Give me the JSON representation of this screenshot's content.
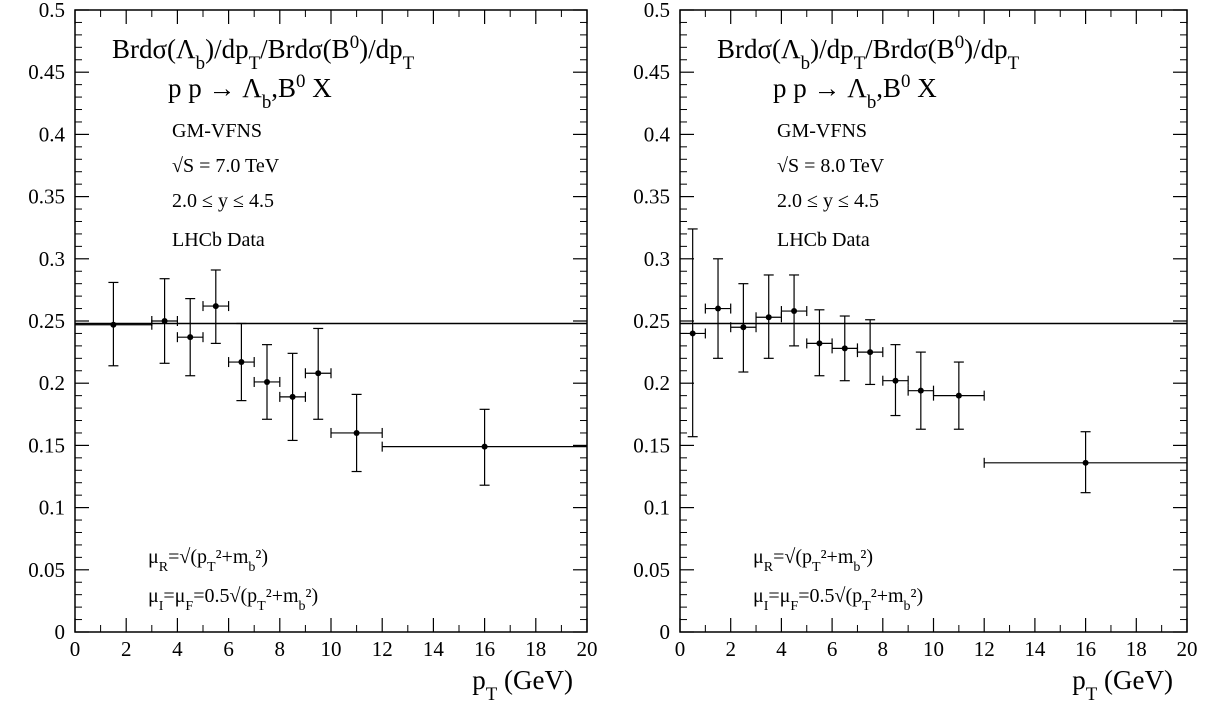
{
  "chart_data": [
    {
      "type": "scatter",
      "title_html": "Brdσ(Λ<tspan baseline-shift=\"sub\" font-size=\"70%\">b</tspan>)/dp<tspan baseline-shift=\"sub\" font-size=\"70%\">T</tspan>/Brdσ(B<tspan baseline-shift=\"super\" font-size=\"70%\">0</tspan>)/dp<tspan baseline-shift=\"sub\" font-size=\"70%\">T</tspan>",
      "process_html": "p p → Λ<tspan baseline-shift=\"sub\" font-size=\"70%\">b</tspan>,B<tspan baseline-shift=\"super\" font-size=\"70%\">0</tspan> X",
      "scheme": "GM-VFNS",
      "energy": "√S = 7.0 TeV",
      "rapidity": "2.0 ≤  y ≤ 4.5",
      "data_label": "LHCb Data",
      "mu_r_html": "μ<tspan baseline-shift=\"sub\" font-size=\"70%\">R</tspan>=√(p<tspan baseline-shift=\"sub\" font-size=\"70%\">T</tspan>²+m<tspan baseline-shift=\"sub\" font-size=\"70%\">b</tspan>²)",
      "mu_i_html": "μ<tspan baseline-shift=\"sub\" font-size=\"70%\">I</tspan>=μ<tspan baseline-shift=\"sub\" font-size=\"70%\">F</tspan>=0.5√(p<tspan baseline-shift=\"sub\" font-size=\"70%\">T</tspan>²+m<tspan baseline-shift=\"sub\" font-size=\"70%\">b</tspan>²)",
      "xlabel_html": "p<tspan baseline-shift=\"sub\" font-size=\"70%\">T</tspan> (GeV)",
      "xlim": [
        0,
        20
      ],
      "ylim": [
        0,
        0.5
      ],
      "xticks": [
        "0",
        "2",
        "4",
        "6",
        "8",
        "10",
        "12",
        "14",
        "16",
        "18",
        "20"
      ],
      "yticks": [
        "0",
        "0.05",
        "0.1",
        "0.15",
        "0.2",
        "0.25",
        "0.3",
        "0.35",
        "0.4",
        "0.45",
        "0.5"
      ],
      "theory_line": 0.248,
      "points": [
        {
          "x": 1.5,
          "y": 0.247,
          "xlo": 0,
          "xhi": 3,
          "ylo": 0.214,
          "yhi": 0.281
        },
        {
          "x": 3.5,
          "y": 0.25,
          "xlo": 3,
          "xhi": 4,
          "ylo": 0.216,
          "yhi": 0.284
        },
        {
          "x": 4.5,
          "y": 0.237,
          "xlo": 4,
          "xhi": 5,
          "ylo": 0.206,
          "yhi": 0.268
        },
        {
          "x": 5.5,
          "y": 0.262,
          "xlo": 5,
          "xhi": 6,
          "ylo": 0.232,
          "yhi": 0.291
        },
        {
          "x": 6.5,
          "y": 0.217,
          "xlo": 6,
          "xhi": 7,
          "ylo": 0.186,
          "yhi": 0.248
        },
        {
          "x": 7.5,
          "y": 0.201,
          "xlo": 7,
          "xhi": 8,
          "ylo": 0.171,
          "yhi": 0.231
        },
        {
          "x": 8.5,
          "y": 0.189,
          "xlo": 8,
          "xhi": 9,
          "ylo": 0.154,
          "yhi": 0.224
        },
        {
          "x": 9.5,
          "y": 0.208,
          "xlo": 9,
          "xhi": 10,
          "ylo": 0.171,
          "yhi": 0.244
        },
        {
          "x": 11.0,
          "y": 0.16,
          "xlo": 10,
          "xhi": 12,
          "ylo": 0.129,
          "yhi": 0.191
        },
        {
          "x": 16.0,
          "y": 0.149,
          "xlo": 12,
          "xhi": 20,
          "ylo": 0.118,
          "yhi": 0.179
        }
      ]
    },
    {
      "type": "scatter",
      "title_html": "Brdσ(Λ<tspan baseline-shift=\"sub\" font-size=\"70%\">b</tspan>)/dp<tspan baseline-shift=\"sub\" font-size=\"70%\">T</tspan>/Brdσ(B<tspan baseline-shift=\"super\" font-size=\"70%\">0</tspan>)/dp<tspan baseline-shift=\"sub\" font-size=\"70%\">T</tspan>",
      "process_html": "p p → Λ<tspan baseline-shift=\"sub\" font-size=\"70%\">b</tspan>,B<tspan baseline-shift=\"super\" font-size=\"70%\">0</tspan> X",
      "scheme": "GM-VFNS",
      "energy": "√S = 8.0 TeV",
      "rapidity": "2.0 ≤  y ≤ 4.5",
      "data_label": "LHCb Data",
      "mu_r_html": "μ<tspan baseline-shift=\"sub\" font-size=\"70%\">R</tspan>=√(p<tspan baseline-shift=\"sub\" font-size=\"70%\">T</tspan>²+m<tspan baseline-shift=\"sub\" font-size=\"70%\">b</tspan>²)",
      "mu_i_html": "μ<tspan baseline-shift=\"sub\" font-size=\"70%\">I</tspan>=μ<tspan baseline-shift=\"sub\" font-size=\"70%\">F</tspan>=0.5√(p<tspan baseline-shift=\"sub\" font-size=\"70%\">T</tspan>²+m<tspan baseline-shift=\"sub\" font-size=\"70%\">b</tspan>²)",
      "xlabel_html": "p<tspan baseline-shift=\"sub\" font-size=\"70%\">T</tspan> (GeV)",
      "xlim": [
        0,
        20
      ],
      "ylim": [
        0,
        0.5
      ],
      "xticks": [
        "0",
        "2",
        "4",
        "6",
        "8",
        "10",
        "12",
        "14",
        "16",
        "18",
        "20"
      ],
      "yticks": [
        "0",
        "0.05",
        "0.1",
        "0.15",
        "0.2",
        "0.25",
        "0.3",
        "0.35",
        "0.4",
        "0.45",
        "0.5"
      ],
      "theory_line": 0.248,
      "points": [
        {
          "x": 0.5,
          "y": 0.24,
          "xlo": 0,
          "xhi": 1,
          "ylo": 0.157,
          "yhi": 0.324
        },
        {
          "x": 1.5,
          "y": 0.26,
          "xlo": 1,
          "xhi": 2,
          "ylo": 0.22,
          "yhi": 0.3
        },
        {
          "x": 2.5,
          "y": 0.245,
          "xlo": 2,
          "xhi": 3,
          "ylo": 0.209,
          "yhi": 0.28
        },
        {
          "x": 3.5,
          "y": 0.253,
          "xlo": 3,
          "xhi": 4,
          "ylo": 0.22,
          "yhi": 0.287
        },
        {
          "x": 4.5,
          "y": 0.258,
          "xlo": 4,
          "xhi": 5,
          "ylo": 0.23,
          "yhi": 0.287
        },
        {
          "x": 5.5,
          "y": 0.232,
          "xlo": 5,
          "xhi": 6,
          "ylo": 0.206,
          "yhi": 0.259
        },
        {
          "x": 6.5,
          "y": 0.228,
          "xlo": 6,
          "xhi": 7,
          "ylo": 0.202,
          "yhi": 0.254
        },
        {
          "x": 7.5,
          "y": 0.225,
          "xlo": 7,
          "xhi": 8,
          "ylo": 0.199,
          "yhi": 0.251
        },
        {
          "x": 8.5,
          "y": 0.202,
          "xlo": 8,
          "xhi": 9,
          "ylo": 0.174,
          "yhi": 0.231
        },
        {
          "x": 9.5,
          "y": 0.194,
          "xlo": 9,
          "xhi": 10,
          "ylo": 0.163,
          "yhi": 0.225
        },
        {
          "x": 11.0,
          "y": 0.19,
          "xlo": 10,
          "xhi": 12,
          "ylo": 0.163,
          "yhi": 0.217
        },
        {
          "x": 16.0,
          "y": 0.136,
          "xlo": 12,
          "xhi": 20,
          "ylo": 0.112,
          "yhi": 0.161
        }
      ]
    }
  ]
}
